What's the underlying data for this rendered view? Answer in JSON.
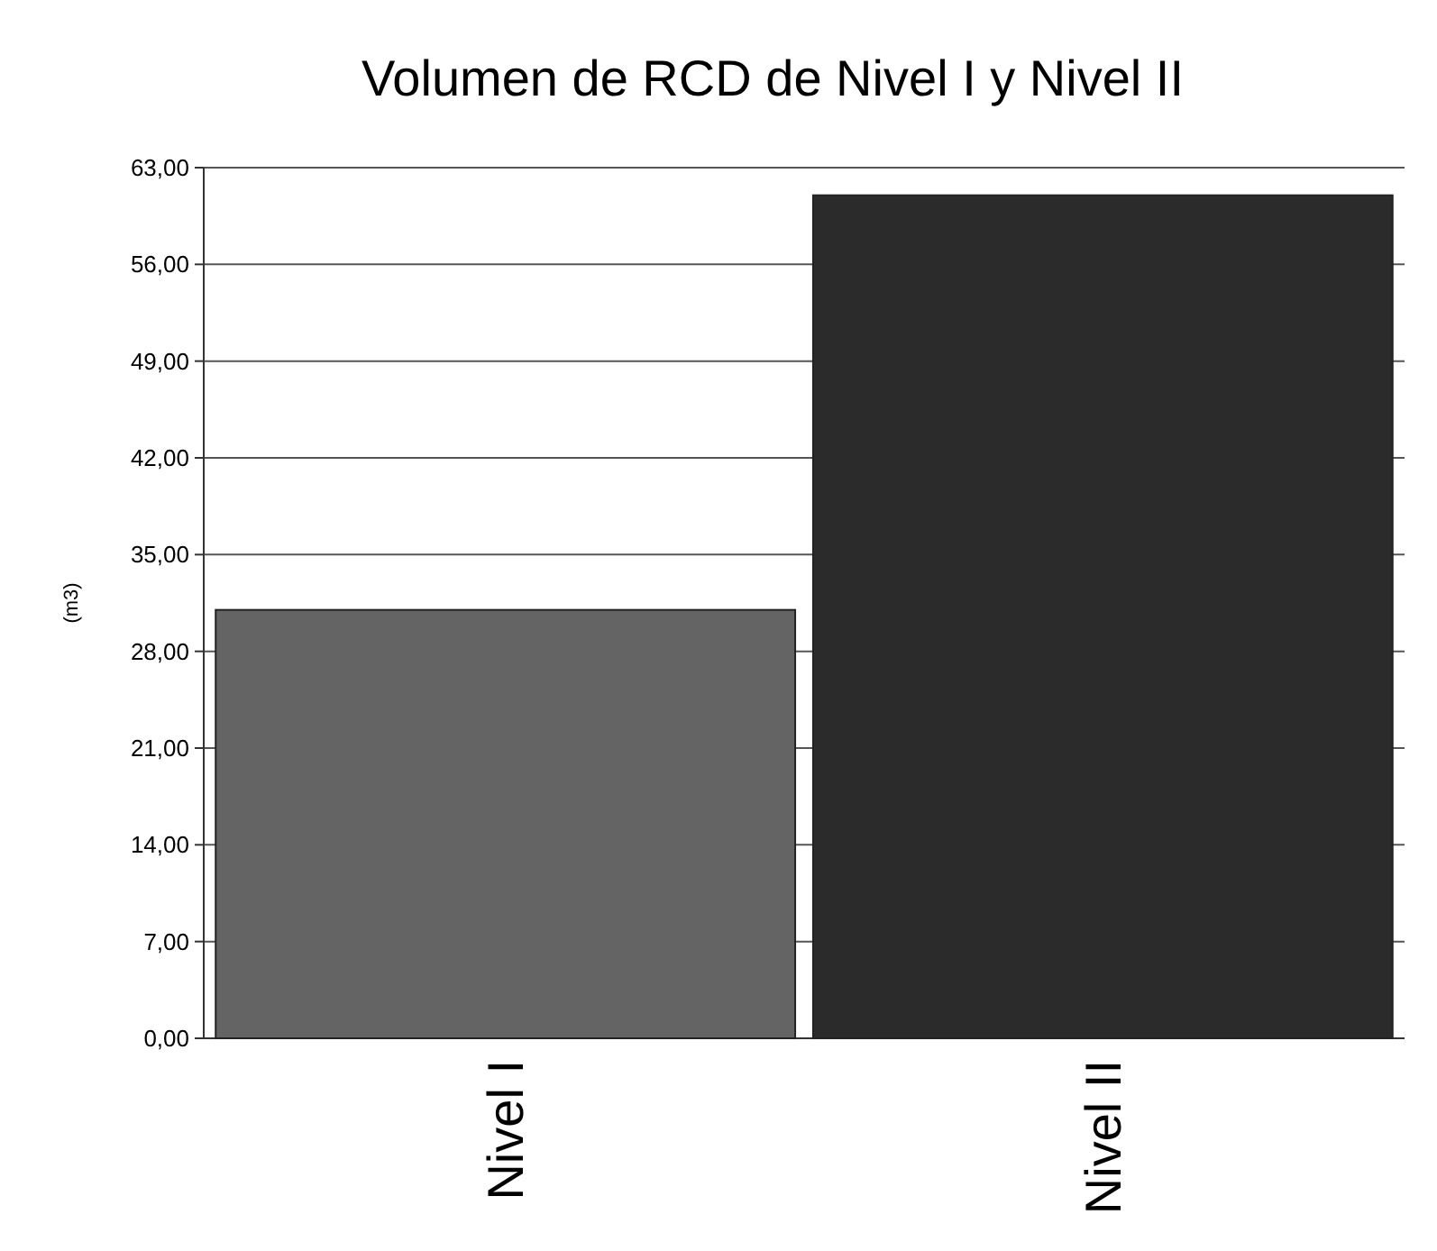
{
  "chart_data": {
    "type": "bar",
    "title": "Volumen de RCD de Nivel I y Nivel II",
    "ylabel": "(m3)",
    "categories": [
      "Nivel I",
      "Nivel II"
    ],
    "values": [
      31,
      61
    ],
    "colors": [
      "#646464",
      "#2b2b2b"
    ],
    "ylim": [
      0,
      63
    ],
    "yticks": [
      {
        "value": 0,
        "label": "0,00"
      },
      {
        "value": 7,
        "label": "7,00"
      },
      {
        "value": 14,
        "label": "14,00"
      },
      {
        "value": 21,
        "label": "21,00"
      },
      {
        "value": 28,
        "label": "28,00"
      },
      {
        "value": 35,
        "label": "35,00"
      },
      {
        "value": 42,
        "label": "42,00"
      },
      {
        "value": 49,
        "label": "49,00"
      },
      {
        "value": 56,
        "label": "56,00"
      },
      {
        "value": 63,
        "label": "63,00"
      }
    ],
    "grid": true
  }
}
